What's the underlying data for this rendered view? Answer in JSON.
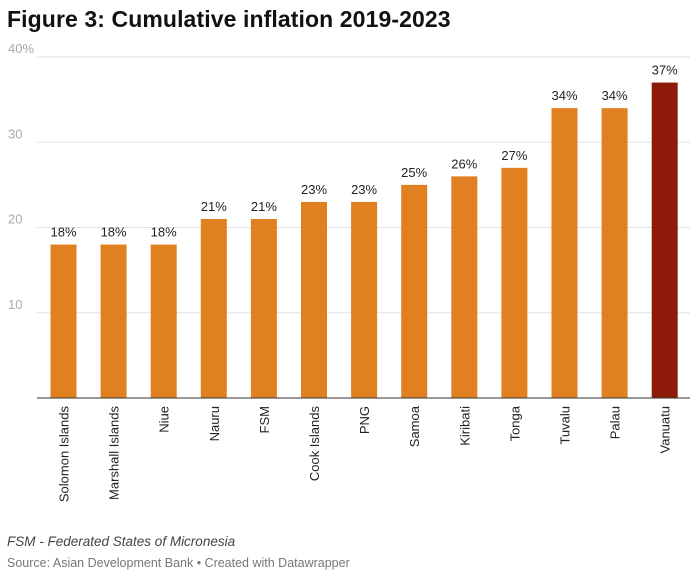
{
  "title": "Figure 3: Cumulative inflation 2019-2023",
  "note": "FSM - Federated States of Micronesia",
  "source": "Source: Asian Development Bank • Created with Datawrapper",
  "colors": {
    "bar": "#e08020",
    "highlight": "#8e1a0a",
    "grid": "#e2e2e2",
    "axis": "#333333"
  },
  "chart_data": {
    "type": "bar",
    "categories": [
      "Solomon Islands",
      "Marshall Islands",
      "Niue",
      "Nauru",
      "FSM",
      "Cook Islands",
      "PNG",
      "Samoa",
      "Kiribati",
      "Tonga",
      "Tuvalu",
      "Palau",
      "Vanuatu"
    ],
    "values": [
      18,
      18,
      18,
      21,
      21,
      23,
      23,
      25,
      26,
      27,
      34,
      34,
      37
    ],
    "value_labels": [
      "18%",
      "18%",
      "18%",
      "21%",
      "21%",
      "23%",
      "23%",
      "25%",
      "26%",
      "27%",
      "34%",
      "34%",
      "37%"
    ],
    "highlighted_category": "Vanuatu",
    "yticks": [
      10,
      20,
      30,
      40
    ],
    "ytick_labels": [
      "10",
      "20",
      "30",
      "40%"
    ],
    "ylim": [
      0,
      40
    ],
    "grid": true
  }
}
